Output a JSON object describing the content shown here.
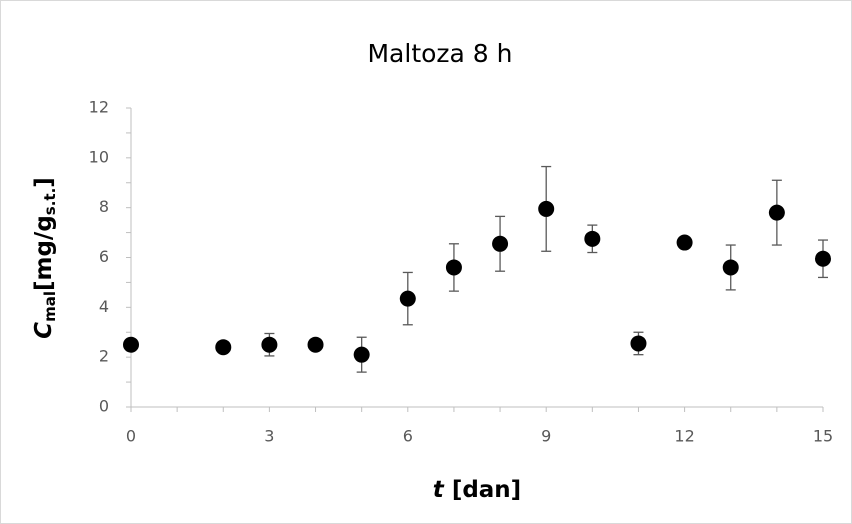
{
  "chart_data": {
    "type": "scatter",
    "title": "Maltoza 8 h",
    "xlabel": {
      "symbol": "t",
      "unit": "[dan]"
    },
    "ylabel": {
      "symbol": "C",
      "subscript": "mal",
      "unit": "[mg/g",
      "unit_subscript": "s.t.",
      "close": "]"
    },
    "x": [
      0,
      2,
      3,
      4,
      5,
      6,
      7,
      8,
      9,
      10,
      11,
      12,
      13,
      14,
      15
    ],
    "series": [
      {
        "name": "Maltoza",
        "color": "#000000",
        "values": [
          2.5,
          2.4,
          2.5,
          2.5,
          2.1,
          4.35,
          5.6,
          6.55,
          7.95,
          6.75,
          2.55,
          6.6,
          5.6,
          7.8,
          5.95
        ],
        "errors": [
          0.1,
          0.05,
          0.45,
          0.05,
          0.7,
          1.05,
          0.95,
          1.1,
          1.7,
          0.55,
          0.45,
          0.05,
          0.9,
          1.3,
          0.75
        ]
      }
    ],
    "xlim": [
      0,
      15
    ],
    "xticks": [
      0,
      3,
      6,
      9,
      12,
      15
    ],
    "xminor_ticks": [
      0,
      1,
      2,
      3,
      4,
      5,
      6,
      7,
      8,
      9,
      10,
      11,
      12,
      13,
      14,
      15
    ],
    "ylim": [
      0,
      12
    ],
    "yticks": [
      0,
      2,
      4,
      6,
      8,
      10,
      12
    ],
    "yminor_ticks": [
      0,
      1,
      2,
      3,
      4,
      5,
      6,
      7,
      8,
      9,
      10,
      11,
      12
    ],
    "grid": false
  }
}
